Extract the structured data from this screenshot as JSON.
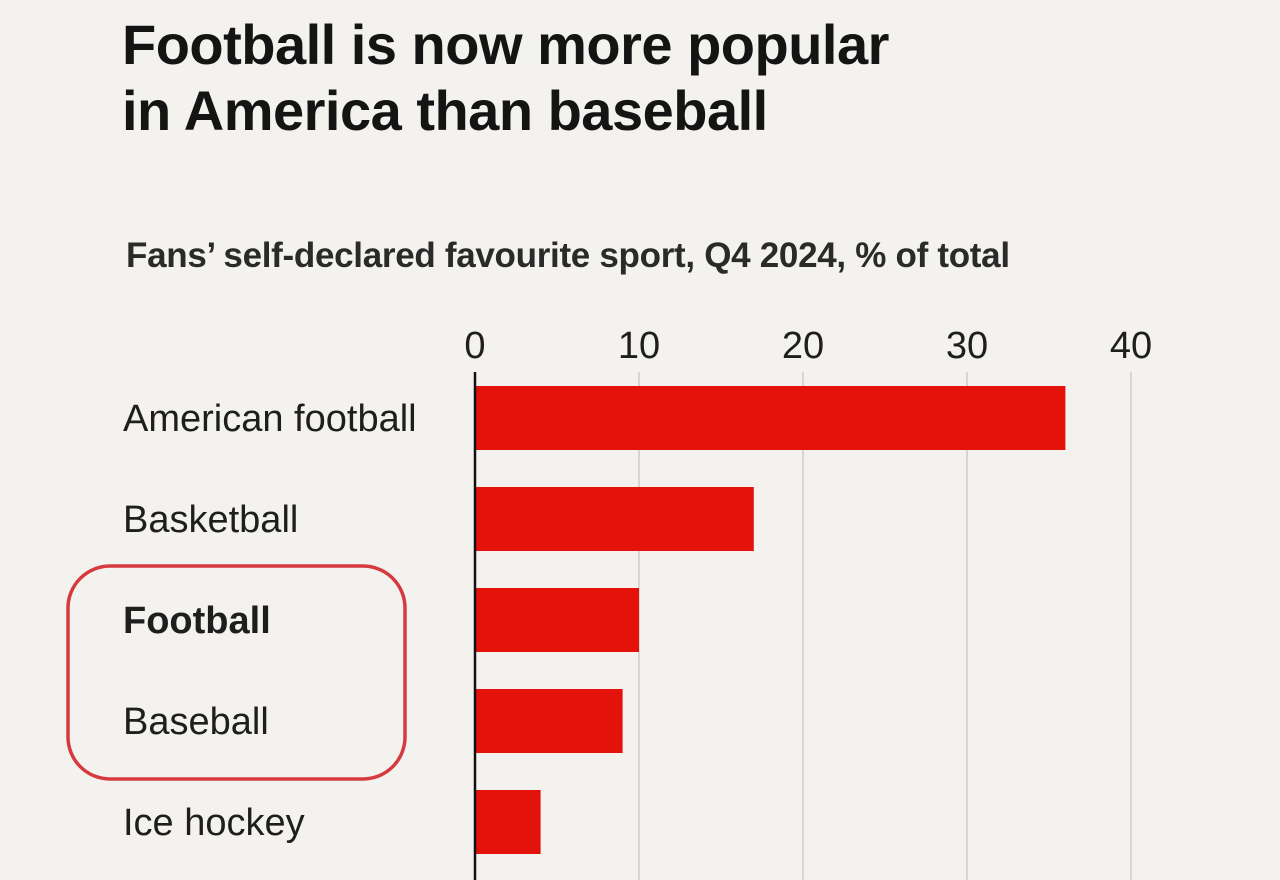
{
  "title_lines": [
    "Football is now more popular",
    "in America than baseball"
  ],
  "chart_data": {
    "type": "bar",
    "orientation": "horizontal",
    "subtitle": "Fans’ self-declared favourite sport, Q4 2024, % of total",
    "categories": [
      "American football",
      "Basketball",
      "Football",
      "Baseball",
      "Ice hockey"
    ],
    "values": [
      36,
      17,
      10,
      9,
      4
    ],
    "highlighted_category": "Football",
    "xlim": [
      0,
      40
    ],
    "xticks": [
      0,
      10,
      20,
      30,
      40
    ],
    "grid": true,
    "bar_color": "#e3120b",
    "annotation": {
      "type": "rounded-rectangle",
      "encircles": [
        "Football",
        "Baseball"
      ],
      "color": "#d63a3f"
    }
  }
}
